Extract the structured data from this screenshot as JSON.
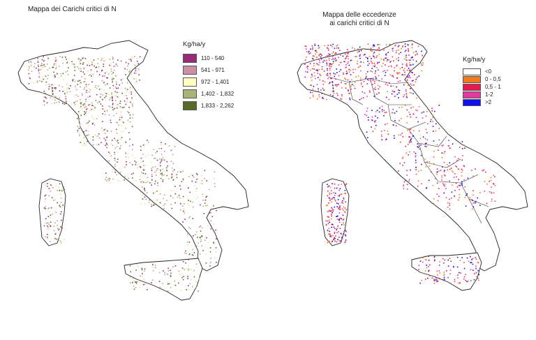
{
  "left_map": {
    "title": "Mappa dei Carichi critici di N",
    "legend": {
      "unit": "Kg/ha/y",
      "items": [
        {
          "label": "110 - 540",
          "color": "#9b2a76"
        },
        {
          "label": "541 - 971",
          "color": "#cf8fa3"
        },
        {
          "label": "972 - 1,401",
          "color": "#ffffc0"
        },
        {
          "label": "1,402 - 1,832",
          "color": "#a8b478"
        },
        {
          "label": "1,833 - 2,262",
          "color": "#5a6a2a"
        }
      ]
    }
  },
  "right_map": {
    "title_line1": "Mappa delle eccedenze",
    "title_line2": "ai carichi critici di N",
    "legend": {
      "unit": "Kg/ha/y",
      "items": [
        {
          "label": "<0",
          "color": "#ffffff"
        },
        {
          "label": "0 - 0,5",
          "color": "#f47a1f"
        },
        {
          "label": "0,5 - 1",
          "color": "#e8194e"
        },
        {
          "label": "1-2",
          "color": "#e23aa0"
        },
        {
          "label": ">2",
          "color": "#1010ee"
        }
      ]
    }
  }
}
